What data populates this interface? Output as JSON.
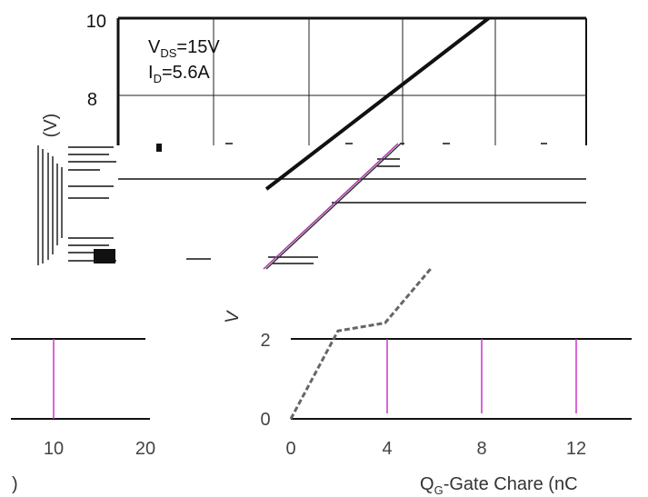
{
  "chart_data": [
    {
      "type": "line",
      "title": "",
      "xlabel": "",
      "ylabel": "(V)",
      "xlim": [
        0,
        12
      ],
      "ylim": [
        6,
        10
      ],
      "y_ticks": [
        "8",
        "10"
      ],
      "annotations": {
        "vds_main": "V",
        "vds_sub": "DS",
        "vds_val": "=15V",
        "id_main": "I",
        "id_sub": "D",
        "id_val": "=5.6A"
      },
      "series": [
        {
          "x": [
            3.8,
            9.5
          ],
          "y": [
            5.7,
            10.0
          ]
        }
      ],
      "grid": true,
      "line_color": "#111111"
    },
    {
      "type": "line",
      "title": "",
      "xlabel_main": "Q",
      "xlabel_sub": "G",
      "xlabel_rest": "-Gate Chare (nC",
      "ylabel": "V",
      "xlim": [
        0,
        14
      ],
      "ylim": [
        0,
        4
      ],
      "x_ticks": [
        "0",
        "4",
        "8",
        "12"
      ],
      "y_ticks": [
        "0",
        "2"
      ],
      "series": [
        {
          "x": [
            0,
            2,
            4,
            6
          ],
          "y": [
            0,
            2.2,
            2.4,
            3.8
          ]
        }
      ],
      "grid": true,
      "gridline_color": "#cc33cc"
    },
    {
      "type": "line",
      "title": "",
      "x_ticks": [
        "10",
        "20"
      ],
      "xlabel_fragment": ")",
      "grid": true,
      "gridline_color": "#cc33cc"
    }
  ]
}
